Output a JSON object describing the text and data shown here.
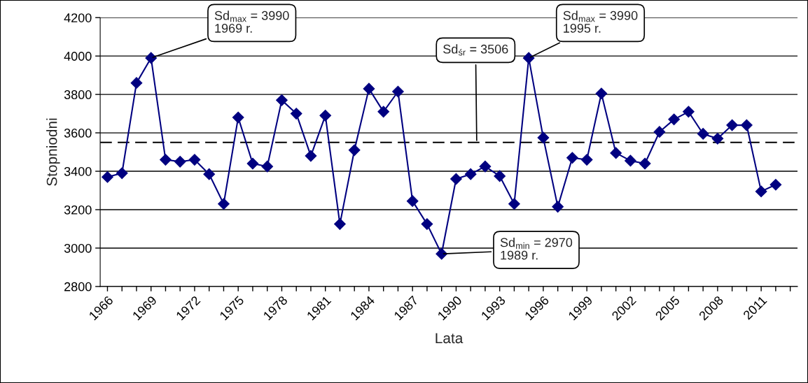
{
  "chart_data": {
    "type": "line",
    "xlabel": "Lata",
    "ylabel": "Stopniodni",
    "x": [
      1966,
      1967,
      1968,
      1969,
      1970,
      1971,
      1972,
      1973,
      1974,
      1975,
      1976,
      1977,
      1978,
      1979,
      1980,
      1981,
      1982,
      1983,
      1984,
      1985,
      1986,
      1987,
      1988,
      1989,
      1990,
      1991,
      1992,
      1993,
      1994,
      1995,
      1996,
      1997,
      1998,
      1999,
      2000,
      2001,
      2002,
      2003,
      2004,
      2005,
      2006,
      2007,
      2008,
      2009,
      2010,
      2011,
      2012
    ],
    "series": [
      {
        "color": "#000080",
        "values": [
          3370,
          3390,
          3860,
          3990,
          3460,
          3450,
          3460,
          3385,
          3230,
          3680,
          3440,
          3425,
          3770,
          3700,
          3480,
          3690,
          3125,
          3510,
          3830,
          3710,
          3815,
          3245,
          3125,
          2970,
          3360,
          3385,
          3425,
          3375,
          3230,
          3990,
          3575,
          3215,
          3470,
          3460,
          3805,
          3495,
          3455,
          3440,
          3605,
          3670,
          3710,
          3595,
          3570,
          3640,
          3640,
          3295,
          3330
        ]
      }
    ],
    "marker": "diamond",
    "line_style": "solid",
    "xlim": [
      1965.5,
      2013.5
    ],
    "xticks": [
      1966,
      {
        "value": 1967,
        "label": null
      },
      {
        "value": 1968,
        "label": null
      },
      1969,
      {
        "value": 1970,
        "label": null
      },
      {
        "value": 1971,
        "label": null
      },
      1972,
      {
        "value": 1973,
        "label": null
      },
      {
        "value": 1974,
        "label": null
      },
      1975,
      {
        "value": 1976,
        "label": null
      },
      {
        "value": 1977,
        "label": null
      },
      1978,
      {
        "value": 1979,
        "label": null
      },
      {
        "value": 1980,
        "label": null
      },
      1981,
      {
        "value": 1982,
        "label": null
      },
      {
        "value": 1983,
        "label": null
      },
      1984,
      {
        "value": 1985,
        "label": null
      },
      {
        "value": 1986,
        "label": null
      },
      1987,
      {
        "value": 1988,
        "label": null
      },
      {
        "value": 1989,
        "label": null
      },
      1990,
      {
        "value": 1991,
        "label": null
      },
      {
        "value": 1992,
        "label": null
      },
      1993,
      {
        "value": 1994,
        "label": null
      },
      {
        "value": 1995,
        "label": null
      },
      1996,
      {
        "value": 1997,
        "label": null
      },
      {
        "value": 1998,
        "label": null
      },
      1999,
      {
        "value": 2000,
        "label": null
      },
      {
        "value": 2001,
        "label": null
      },
      2002,
      {
        "value": 2003,
        "label": null
      },
      {
        "value": 2004,
        "label": null
      },
      2005,
      {
        "value": 2006,
        "label": null
      },
      {
        "value": 2007,
        "label": null
      },
      2008,
      {
        "value": 2009,
        "label": null
      },
      {
        "value": 2010,
        "label": null
      },
      2011,
      {
        "value": 2012,
        "label": null
      },
      {
        "value": 2013,
        "label": null
      }
    ],
    "ylim": [
      2800,
      4200
    ],
    "yticks": [
      2800,
      3000,
      3200,
      3400,
      3600,
      3800,
      4000,
      4200
    ],
    "grid": "y",
    "ref_lines": [
      {
        "axis": "y",
        "value": 3550,
        "color": "#000000",
        "line_style": "dashed"
      }
    ],
    "annotations": [
      {
        "text": "Sd$_{śr}$ = 3506",
        "y": 3550
      },
      {
        "text": "Sd$_{max}$ = 3990\n1969 r.",
        "x": 1969,
        "y": 3990
      },
      {
        "text": "Sd$_{max}$ = 3990\n1995 r.",
        "x": 1995,
        "y": 3990
      },
      {
        "text": "Sd$_{min}$ = 2970\n1989 r.",
        "x": 1989,
        "y": 2970
      }
    ]
  }
}
